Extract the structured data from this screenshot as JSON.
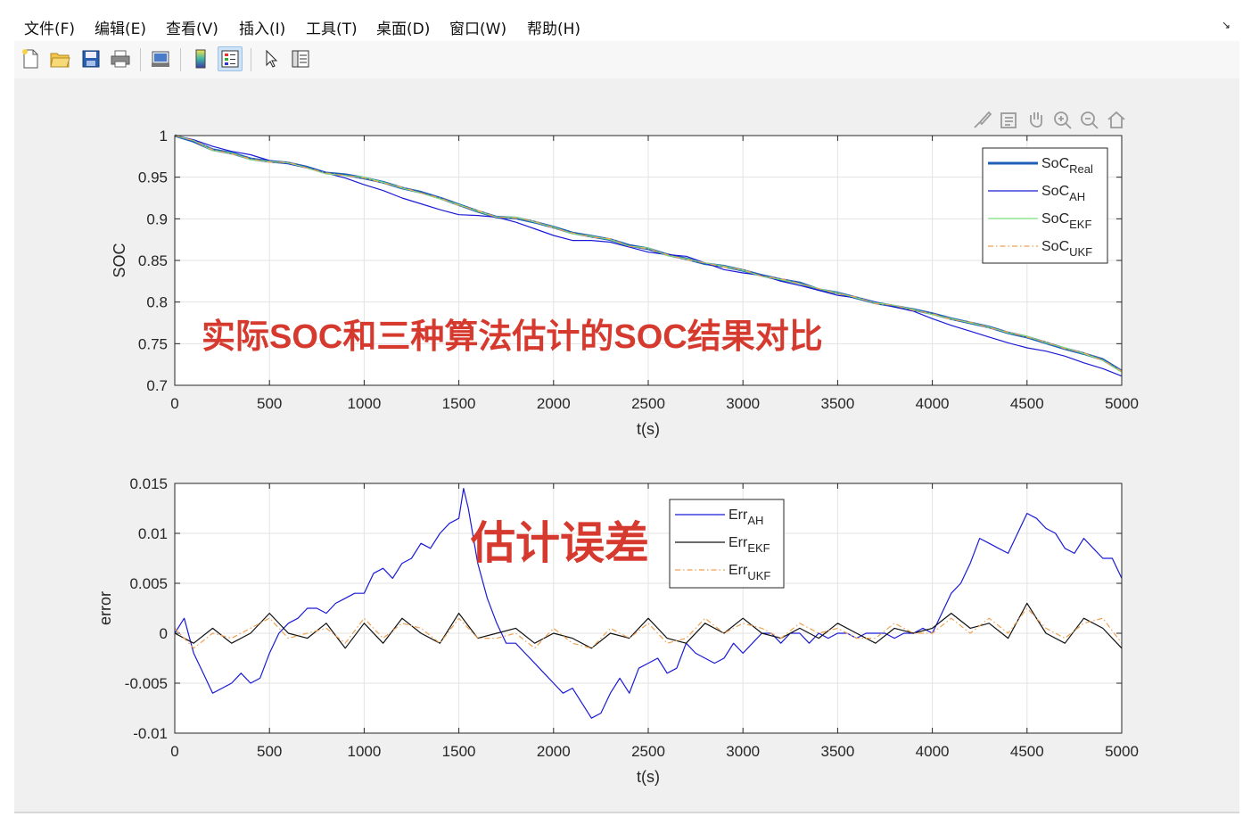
{
  "menu": [
    {
      "text": "文件(",
      "key": "F",
      "close": ")"
    },
    {
      "text": "编辑(",
      "key": "E",
      "close": ")"
    },
    {
      "text": "查看(",
      "key": "V",
      "close": ")"
    },
    {
      "text": "插入(",
      "key": "I",
      "close": ")"
    },
    {
      "text": "工具(",
      "key": "T",
      "close": ")"
    },
    {
      "text": "桌面(",
      "key": "D",
      "close": ")"
    },
    {
      "text": "窗口(",
      "key": "W",
      "close": ")"
    },
    {
      "text": "帮助(",
      "key": "H",
      "close": ")"
    }
  ],
  "menu_labels": {
    "m0": "文件(F)",
    "m1": "编辑(E)",
    "m2": "查看(V)",
    "m3": "插入(I)",
    "m4": "工具(T)",
    "m5": "桌面(D)",
    "m6": "窗口(W)",
    "m7": "帮助(H)"
  },
  "toolbar": {
    "icons": [
      "new-file-icon",
      "open-folder-icon",
      "save-icon",
      "print-icon",
      "print-preview-icon",
      "colorbar-icon",
      "legend-icon",
      "pointer-icon",
      "property-inspector-icon"
    ],
    "active": [
      "legend-icon"
    ]
  },
  "axes_toolbar": {
    "icons": [
      "brush-icon",
      "data-tips-icon",
      "pan-hand-icon",
      "zoom-in-icon",
      "zoom-out-icon",
      "home-icon"
    ]
  },
  "colors": {
    "real": "#1f5fb8",
    "ah": "#1a1ad6",
    "ekf": "#7be07b",
    "ukf": "#f0a050",
    "err_ah": "#1a1ad6",
    "err_ekf": "#111111",
    "err_ukf": "#f0a050",
    "annotation": "#d63a2f"
  },
  "chart_data": [
    {
      "type": "line",
      "xlabel": "t(s)",
      "ylabel": "SOC",
      "xlim": [
        0,
        5000
      ],
      "ylim": [
        0.7,
        1
      ],
      "xticks": [
        0,
        500,
        1000,
        1500,
        2000,
        2500,
        3000,
        3500,
        4000,
        4500,
        5000
      ],
      "yticks": [
        0.7,
        0.75,
        0.8,
        0.85,
        0.9,
        0.95,
        1
      ],
      "ytick_labels": [
        "0.7",
        "0.75",
        "0.8",
        "0.85",
        "0.9",
        "0.95",
        "1"
      ],
      "grid": true,
      "legend_position": "top-right",
      "annotation": "实际SOC和三种算法估计的SOC结果对比",
      "series": [
        {
          "name": "SoC_Real",
          "legend_main": "SoC",
          "legend_sub": "Real",
          "style": "solid-thick",
          "x": [
            0,
            100,
            200,
            300,
            400,
            500,
            600,
            700,
            800,
            900,
            1000,
            1100,
            1200,
            1300,
            1400,
            1500,
            1600,
            1700,
            1800,
            1900,
            2000,
            2100,
            2200,
            2300,
            2400,
            2500,
            2600,
            2700,
            2800,
            2900,
            3000,
            3100,
            3200,
            3300,
            3400,
            3500,
            3600,
            3700,
            3800,
            3900,
            4000,
            4100,
            4200,
            4300,
            4400,
            4500,
            4600,
            4700,
            4800,
            4900,
            5000
          ],
          "values": [
            1.0,
            0.993,
            0.983,
            0.979,
            0.972,
            0.969,
            0.967,
            0.962,
            0.955,
            0.953,
            0.949,
            0.944,
            0.937,
            0.932,
            0.925,
            0.917,
            0.909,
            0.902,
            0.901,
            0.896,
            0.89,
            0.883,
            0.879,
            0.875,
            0.868,
            0.864,
            0.857,
            0.852,
            0.846,
            0.843,
            0.838,
            0.832,
            0.827,
            0.823,
            0.815,
            0.811,
            0.805,
            0.799,
            0.795,
            0.791,
            0.786,
            0.78,
            0.775,
            0.77,
            0.763,
            0.758,
            0.751,
            0.744,
            0.738,
            0.731,
            0.717
          ]
        },
        {
          "name": "SoC_AH",
          "legend_main": "SoC",
          "legend_sub": "AH",
          "style": "solid",
          "x": [
            0,
            100,
            200,
            300,
            400,
            500,
            600,
            700,
            800,
            900,
            1000,
            1100,
            1200,
            1300,
            1400,
            1500,
            1600,
            1700,
            1800,
            1900,
            2000,
            2100,
            2200,
            2300,
            2400,
            2500,
            2600,
            2700,
            2800,
            2900,
            3000,
            3100,
            3200,
            3300,
            3400,
            3500,
            3600,
            3700,
            3800,
            3900,
            4000,
            4100,
            4200,
            4300,
            4400,
            4500,
            4600,
            4700,
            4800,
            4900,
            5000
          ],
          "values": [
            1.0,
            0.995,
            0.987,
            0.981,
            0.977,
            0.97,
            0.966,
            0.961,
            0.955,
            0.949,
            0.941,
            0.934,
            0.925,
            0.918,
            0.911,
            0.905,
            0.904,
            0.902,
            0.896,
            0.888,
            0.88,
            0.874,
            0.874,
            0.872,
            0.866,
            0.86,
            0.857,
            0.855,
            0.847,
            0.839,
            0.835,
            0.832,
            0.825,
            0.82,
            0.814,
            0.808,
            0.805,
            0.8,
            0.794,
            0.789,
            0.78,
            0.772,
            0.765,
            0.758,
            0.751,
            0.745,
            0.741,
            0.735,
            0.727,
            0.72,
            0.711
          ]
        },
        {
          "name": "SoC_EKF",
          "legend_main": "SoC",
          "legend_sub": "EKF",
          "style": "solid",
          "x": [
            0,
            100,
            200,
            300,
            400,
            500,
            600,
            700,
            800,
            900,
            1000,
            1100,
            1200,
            1300,
            1400,
            1500,
            1600,
            1700,
            1800,
            1900,
            2000,
            2100,
            2200,
            2300,
            2400,
            2500,
            2600,
            2700,
            2800,
            2900,
            3000,
            3100,
            3200,
            3300,
            3400,
            3500,
            3600,
            3700,
            3800,
            3900,
            4000,
            4100,
            4200,
            4300,
            4400,
            4500,
            4600,
            4700,
            4800,
            4900,
            5000
          ],
          "values": [
            1.0,
            0.994,
            0.982,
            0.979,
            0.971,
            0.969,
            0.967,
            0.961,
            0.954,
            0.952,
            0.95,
            0.944,
            0.937,
            0.931,
            0.924,
            0.917,
            0.909,
            0.902,
            0.902,
            0.896,
            0.89,
            0.882,
            0.879,
            0.875,
            0.867,
            0.865,
            0.856,
            0.852,
            0.847,
            0.843,
            0.838,
            0.831,
            0.827,
            0.822,
            0.816,
            0.811,
            0.805,
            0.799,
            0.796,
            0.791,
            0.785,
            0.78,
            0.775,
            0.77,
            0.763,
            0.759,
            0.751,
            0.745,
            0.738,
            0.73,
            0.716
          ]
        },
        {
          "name": "SoC_UKF",
          "legend_main": "SoC",
          "legend_sub": "UKF",
          "style": "dashdot",
          "x": [
            0,
            100,
            200,
            300,
            400,
            500,
            600,
            700,
            800,
            900,
            1000,
            1100,
            1200,
            1300,
            1400,
            1500,
            1600,
            1700,
            1800,
            1900,
            2000,
            2100,
            2200,
            2300,
            2400,
            2500,
            2600,
            2700,
            2800,
            2900,
            3000,
            3100,
            3200,
            3300,
            3400,
            3500,
            3600,
            3700,
            3800,
            3900,
            4000,
            4100,
            4200,
            4300,
            4400,
            4500,
            4600,
            4700,
            4800,
            4900,
            5000
          ],
          "values": [
            1.0,
            0.994,
            0.983,
            0.978,
            0.972,
            0.968,
            0.968,
            0.961,
            0.955,
            0.952,
            0.949,
            0.943,
            0.938,
            0.931,
            0.925,
            0.916,
            0.91,
            0.902,
            0.901,
            0.897,
            0.889,
            0.883,
            0.878,
            0.876,
            0.867,
            0.864,
            0.857,
            0.851,
            0.847,
            0.842,
            0.839,
            0.831,
            0.828,
            0.822,
            0.816,
            0.81,
            0.806,
            0.798,
            0.796,
            0.79,
            0.786,
            0.779,
            0.776,
            0.769,
            0.764,
            0.758,
            0.752,
            0.744,
            0.739,
            0.73,
            0.717
          ]
        }
      ]
    },
    {
      "type": "line",
      "xlabel": "t(s)",
      "ylabel": "error",
      "xlim": [
        0,
        5000
      ],
      "ylim": [
        -0.01,
        0.015
      ],
      "xticks": [
        0,
        500,
        1000,
        1500,
        2000,
        2500,
        3000,
        3500,
        4000,
        4500,
        5000
      ],
      "yticks": [
        -0.01,
        -0.005,
        0,
        0.005,
        0.01,
        0.015
      ],
      "ytick_labels": [
        "-0.01",
        "-0.005",
        "0",
        "0.005",
        "0.01",
        "0.015"
      ],
      "grid": true,
      "legend_position": "top-center",
      "annotation": "估计误差",
      "series": [
        {
          "name": "Err_AH",
          "legend_main": "Err",
          "legend_sub": "AH",
          "style": "solid",
          "x": [
            0,
            50,
            100,
            150,
            200,
            250,
            300,
            350,
            400,
            450,
            500,
            550,
            600,
            650,
            700,
            750,
            800,
            850,
            900,
            950,
            1000,
            1050,
            1100,
            1150,
            1200,
            1250,
            1300,
            1350,
            1400,
            1450,
            1500,
            1525,
            1550,
            1600,
            1650,
            1700,
            1750,
            1800,
            1850,
            1900,
            1950,
            2000,
            2050,
            2100,
            2150,
            2200,
            2250,
            2300,
            2350,
            2400,
            2450,
            2500,
            2550,
            2600,
            2650,
            2700,
            2750,
            2800,
            2850,
            2900,
            2950,
            3000,
            3050,
            3100,
            3150,
            3200,
            3250,
            3300,
            3350,
            3400,
            3450,
            3500,
            3550,
            3600,
            3650,
            3700,
            3750,
            3800,
            3850,
            3900,
            3950,
            4000,
            4050,
            4100,
            4150,
            4200,
            4250,
            4300,
            4350,
            4400,
            4450,
            4500,
            4550,
            4600,
            4650,
            4700,
            4750,
            4800,
            4850,
            4900,
            4950,
            5000
          ],
          "values": [
            0.0,
            0.0015,
            -0.002,
            -0.004,
            -0.006,
            -0.0055,
            -0.005,
            -0.004,
            -0.005,
            -0.0045,
            -0.002,
            0.0,
            0.001,
            0.0015,
            0.0025,
            0.0025,
            0.002,
            0.003,
            0.0035,
            0.004,
            0.004,
            0.006,
            0.0065,
            0.0055,
            0.007,
            0.0075,
            0.009,
            0.0085,
            0.01,
            0.011,
            0.0115,
            0.0145,
            0.0125,
            0.007,
            0.0035,
            0.001,
            -0.001,
            -0.001,
            -0.002,
            -0.003,
            -0.004,
            -0.005,
            -0.006,
            -0.0055,
            -0.007,
            -0.0085,
            -0.008,
            -0.006,
            -0.0045,
            -0.006,
            -0.0035,
            -0.003,
            -0.0025,
            -0.004,
            -0.0035,
            -0.001,
            -0.002,
            -0.0025,
            -0.003,
            -0.0025,
            -0.001,
            -0.002,
            -0.001,
            0.0,
            0.0,
            -0.001,
            0.0,
            0.0,
            -0.001,
            0.0,
            -0.0005,
            0.0,
            0.0,
            -0.0005,
            0.0,
            0.0,
            0.0,
            -0.0005,
            0.0,
            0.0,
            0.0005,
            0.0,
            0.002,
            0.004,
            0.005,
            0.007,
            0.0095,
            0.009,
            0.0085,
            0.008,
            0.01,
            0.012,
            0.0115,
            0.0105,
            0.01,
            0.0085,
            0.008,
            0.0095,
            0.0085,
            0.0075,
            0.0075,
            0.0055
          ]
        },
        {
          "name": "Err_EKF",
          "legend_main": "Err",
          "legend_sub": "EKF",
          "style": "solid",
          "x": [
            0,
            100,
            200,
            300,
            400,
            500,
            600,
            700,
            800,
            900,
            1000,
            1100,
            1200,
            1300,
            1400,
            1500,
            1600,
            1700,
            1800,
            1900,
            2000,
            2100,
            2200,
            2300,
            2400,
            2500,
            2600,
            2700,
            2800,
            2900,
            3000,
            3100,
            3200,
            3300,
            3400,
            3500,
            3600,
            3700,
            3800,
            3900,
            4000,
            4100,
            4200,
            4300,
            4400,
            4500,
            4600,
            4700,
            4800,
            4900,
            5000
          ],
          "values": [
            0.0,
            -0.001,
            0.0005,
            -0.001,
            0.0,
            0.002,
            0.0,
            -0.0005,
            0.001,
            -0.0015,
            0.001,
            -0.001,
            0.0015,
            0.0,
            -0.001,
            0.002,
            -0.0005,
            0.0,
            0.0005,
            -0.001,
            0.0,
            -0.0005,
            -0.0015,
            0.0,
            -0.0005,
            0.0015,
            -0.0005,
            -0.001,
            0.001,
            0.0,
            0.0015,
            0.0,
            -0.0005,
            0.0005,
            -0.0005,
            0.001,
            0.0,
            -0.001,
            0.0005,
            0.0,
            0.0005,
            0.002,
            0.0005,
            0.001,
            -0.0005,
            0.003,
            0.0,
            -0.001,
            0.0015,
            0.0005,
            -0.0015
          ]
        },
        {
          "name": "Err_UKF",
          "legend_main": "Err",
          "legend_sub": "UKF",
          "style": "dashdot",
          "x": [
            0,
            100,
            200,
            300,
            400,
            500,
            600,
            700,
            800,
            900,
            1000,
            1100,
            1200,
            1300,
            1400,
            1500,
            1600,
            1700,
            1800,
            1900,
            2000,
            2100,
            2200,
            2300,
            2400,
            2500,
            2600,
            2700,
            2800,
            2900,
            3000,
            3100,
            3200,
            3300,
            3400,
            3500,
            3600,
            3700,
            3800,
            3900,
            4000,
            4100,
            4200,
            4300,
            4400,
            4500,
            4600,
            4700,
            4800,
            4900,
            5000
          ],
          "values": [
            0.0005,
            -0.0015,
            0.0,
            -0.0005,
            0.0005,
            0.0015,
            -0.0005,
            0.0,
            0.0005,
            -0.001,
            0.0015,
            -0.0005,
            0.001,
            0.0005,
            -0.001,
            0.0015,
            -0.0005,
            -0.0005,
            0.0,
            -0.0015,
            0.0005,
            -0.001,
            -0.0015,
            0.0005,
            -0.0005,
            0.001,
            -0.001,
            -0.0005,
            0.0015,
            0.0,
            0.001,
            0.0005,
            -0.0005,
            0.001,
            0.0,
            0.0005,
            -0.0005,
            -0.0005,
            0.001,
            0.0,
            0.0,
            0.0015,
            0.0,
            0.0015,
            0.0,
            0.0025,
            0.0005,
            -0.0005,
            0.001,
            0.0015,
            -0.001
          ]
        }
      ]
    }
  ]
}
